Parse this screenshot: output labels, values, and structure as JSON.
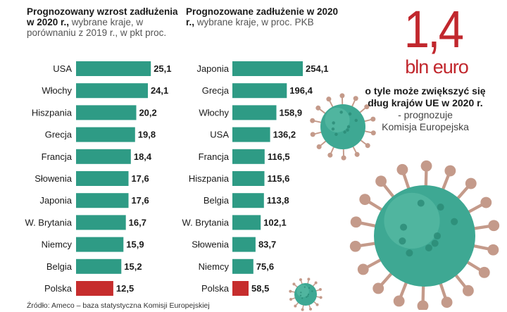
{
  "colors": {
    "bar": "#2e9b85",
    "highlight": "#c62d2d",
    "accent": "#c1272d",
    "virus": "#3ea893",
    "virus_spike": "#c49a8a"
  },
  "left_title": {
    "bold": "Prognozowany wzrost zadłużenia w 2020 r.,",
    "sub": " wybrane kraje, w porównaniu z 2019 r., w pkt proc."
  },
  "right_title": {
    "bold": "Prognozowane zadłużenie w 2020 r.,",
    "sub": " wybrane kraje, w proc. PKB"
  },
  "headline": {
    "number": "1,4",
    "unit": "bln euro",
    "line1": "o tyle może zwiększyć się",
    "line2": "dług krajów UE w 2020 r.",
    "line3": "- prognozuje",
    "line4": "Komisja Europejska"
  },
  "source": "Źródło: Ameco – baza statystyczna Komisji Europejskiej",
  "chart_data": [
    {
      "type": "bar",
      "orientation": "horizontal",
      "title": "Prognozowany wzrost zadłużenia w 2020 r., wybrane kraje, w porównaniu z 2019 r., w pkt proc.",
      "categories": [
        "USA",
        "Włochy",
        "Hiszpania",
        "Grecja",
        "Francja",
        "Słowenia",
        "Japonia",
        "W. Brytania",
        "Niemcy",
        "Belgia",
        "Polska"
      ],
      "values": [
        25.1,
        24.1,
        20.2,
        19.8,
        18.4,
        17.6,
        17.6,
        16.7,
        15.9,
        15.2,
        12.5
      ],
      "labels": [
        "25,1",
        "24,1",
        "20,2",
        "19,8",
        "18,4",
        "17,6",
        "17,6",
        "16,7",
        "15,9",
        "15,2",
        "12,5"
      ],
      "highlight": "Polska"
    },
    {
      "type": "bar",
      "orientation": "horizontal",
      "title": "Prognozowane zadłużenie w 2020 r., wybrane kraje, w proc. PKB",
      "categories": [
        "Japonia",
        "Grecja",
        "Włochy",
        "USA",
        "Francja",
        "Hiszpania",
        "Belgia",
        "W. Brytania",
        "Słowenia",
        "Niemcy",
        "Polska"
      ],
      "values": [
        254.1,
        196.4,
        158.9,
        136.2,
        116.5,
        115.6,
        113.8,
        102.1,
        83.7,
        75.6,
        58.5
      ],
      "labels": [
        "254,1",
        "196,4",
        "158,9",
        "136,2",
        "116,5",
        "115,6",
        "113,8",
        "102,1",
        "83,7",
        "75,6",
        "58,5"
      ],
      "highlight": "Polska"
    }
  ]
}
